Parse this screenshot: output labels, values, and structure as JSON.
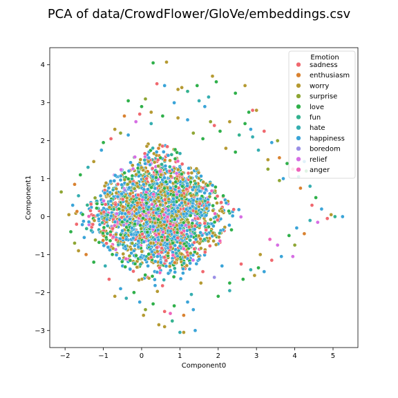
{
  "chart_data": {
    "type": "scatter",
    "title": "PCA of data/CrowdFlower/GloVe/embeddings.csv",
    "xlabel": "Component0",
    "ylabel": "Component1",
    "xlim": [
      -2.4,
      5.65
    ],
    "ylim": [
      -3.45,
      4.45
    ],
    "xticks": [
      -2,
      -1,
      0,
      1,
      2,
      3,
      4,
      5
    ],
    "yticks": [
      -3,
      -2,
      -1,
      0,
      1,
      2,
      3,
      4
    ],
    "grid": false,
    "legend": {
      "title": "Emotion",
      "placement": "top-right"
    },
    "series": [
      {
        "name": "sadness",
        "color": "#f0686f"
      },
      {
        "name": "enthusiasm",
        "color": "#d98230"
      },
      {
        "name": "worry",
        "color": "#b59a32"
      },
      {
        "name": "surprise",
        "color": "#8ea634"
      },
      {
        "name": "love",
        "color": "#2fb04a"
      },
      {
        "name": "fun",
        "color": "#33b28f"
      },
      {
        "name": "hate",
        "color": "#35aeb0"
      },
      {
        "name": "happiness",
        "color": "#3aa4d8"
      },
      {
        "name": "boredom",
        "color": "#9a8fe6"
      },
      {
        "name": "relief",
        "color": "#d66ee4"
      },
      {
        "name": "anger",
        "color": "#ee63bb"
      }
    ],
    "points": [
      {
        "x": 0.3,
        "y": 4.05,
        "s": 4
      },
      {
        "x": 0.65,
        "y": 4.07,
        "s": 2
      },
      {
        "x": 0.4,
        "y": 3.5,
        "s": 0
      },
      {
        "x": 0.6,
        "y": 3.45,
        "s": 7
      },
      {
        "x": 1.05,
        "y": 3.4,
        "s": 2
      },
      {
        "x": 1.2,
        "y": 3.3,
        "s": 5
      },
      {
        "x": 1.45,
        "y": 3.45,
        "s": 4
      },
      {
        "x": 1.85,
        "y": 3.7,
        "s": 2
      },
      {
        "x": 1.95,
        "y": 3.55,
        "s": 4
      },
      {
        "x": 2.7,
        "y": 3.45,
        "s": 2
      },
      {
        "x": 2.45,
        "y": 3.25,
        "s": 4
      },
      {
        "x": 0.1,
        "y": 3.1,
        "s": 3
      },
      {
        "x": -0.35,
        "y": 3.05,
        "s": 4
      },
      {
        "x": 0.85,
        "y": 3.0,
        "s": 7
      },
      {
        "x": 1.5,
        "y": 3.05,
        "s": 6
      },
      {
        "x": 0.0,
        "y": 2.9,
        "s": 4
      },
      {
        "x": -0.05,
        "y": 2.7,
        "s": 0
      },
      {
        "x": 0.25,
        "y": 2.75,
        "s": 2
      },
      {
        "x": 1.65,
        "y": 2.9,
        "s": 7
      },
      {
        "x": 1.8,
        "y": 2.5,
        "s": 3
      },
      {
        "x": 2.9,
        "y": 2.8,
        "s": 0
      },
      {
        "x": 3.0,
        "y": 2.8,
        "s": 2
      },
      {
        "x": 2.8,
        "y": 2.75,
        "s": 4
      },
      {
        "x": -0.45,
        "y": 2.65,
        "s": 1
      },
      {
        "x": 1.9,
        "y": 2.4,
        "s": 0
      },
      {
        "x": 2.05,
        "y": 2.25,
        "s": 4
      },
      {
        "x": 2.3,
        "y": 2.5,
        "s": 2
      },
      {
        "x": 2.85,
        "y": 2.3,
        "s": 7
      },
      {
        "x": -0.7,
        "y": 2.3,
        "s": 2
      },
      {
        "x": 2.55,
        "y": 2.15,
        "s": 5
      },
      {
        "x": 3.2,
        "y": 2.25,
        "s": 0
      },
      {
        "x": 2.9,
        "y": 2.1,
        "s": 6
      },
      {
        "x": 3.55,
        "y": 2.0,
        "s": 3
      },
      {
        "x": 3.4,
        "y": 1.95,
        "s": 7
      },
      {
        "x": 2.2,
        "y": 1.8,
        "s": 2
      },
      {
        "x": 2.45,
        "y": 1.7,
        "s": 4
      },
      {
        "x": 3.05,
        "y": 1.75,
        "s": 6
      },
      {
        "x": 3.3,
        "y": 1.5,
        "s": 2
      },
      {
        "x": 3.6,
        "y": 1.55,
        "s": 1
      },
      {
        "x": 3.8,
        "y": 1.4,
        "s": 4
      },
      {
        "x": 4.25,
        "y": 1.45,
        "s": 7
      },
      {
        "x": 4.1,
        "y": 1.05,
        "s": 6
      },
      {
        "x": 3.95,
        "y": 1.25,
        "s": 0
      },
      {
        "x": 4.3,
        "y": 1.2,
        "s": 4
      },
      {
        "x": 3.6,
        "y": 0.95,
        "s": 3
      },
      {
        "x": 3.7,
        "y": 1.0,
        "s": 7
      },
      {
        "x": 4.15,
        "y": 0.75,
        "s": 1
      },
      {
        "x": 4.4,
        "y": 0.8,
        "s": 6
      },
      {
        "x": 4.55,
        "y": 0.5,
        "s": 4
      },
      {
        "x": 4.45,
        "y": 0.3,
        "s": 0
      },
      {
        "x": 4.7,
        "y": 0.2,
        "s": 7
      },
      {
        "x": 4.95,
        "y": 0.05,
        "s": 2
      },
      {
        "x": 5.05,
        "y": 0.0,
        "s": 5
      },
      {
        "x": 5.25,
        "y": 0.0,
        "s": 7
      },
      {
        "x": 4.85,
        "y": -0.05,
        "s": 0
      },
      {
        "x": 4.6,
        "y": -0.15,
        "s": 9
      },
      {
        "x": 4.4,
        "y": -0.1,
        "s": 6
      },
      {
        "x": 4.25,
        "y": -0.45,
        "s": 1
      },
      {
        "x": 4.05,
        "y": -0.3,
        "s": 7
      },
      {
        "x": 3.85,
        "y": -0.5,
        "s": 4
      },
      {
        "x": 4.0,
        "y": -0.75,
        "s": 3
      },
      {
        "x": 3.55,
        "y": -0.75,
        "s": 9
      },
      {
        "x": 3.65,
        "y": -1.05,
        "s": 7
      },
      {
        "x": 3.4,
        "y": -1.15,
        "s": 0
      },
      {
        "x": 3.1,
        "y": -1.0,
        "s": 2
      },
      {
        "x": 3.05,
        "y": -1.35,
        "s": 4
      },
      {
        "x": 3.2,
        "y": -1.45,
        "s": 7
      },
      {
        "x": 2.95,
        "y": -1.55,
        "s": 2
      },
      {
        "x": 2.85,
        "y": -1.4,
        "s": 6
      },
      {
        "x": 2.6,
        "y": -1.25,
        "s": 0
      },
      {
        "x": 2.3,
        "y": -1.75,
        "s": 4
      },
      {
        "x": 2.1,
        "y": -1.3,
        "s": 7
      },
      {
        "x": 1.9,
        "y": -1.6,
        "s": 8
      },
      {
        "x": 2.0,
        "y": -2.1,
        "s": 4
      },
      {
        "x": 1.55,
        "y": -1.75,
        "s": 2
      },
      {
        "x": 1.3,
        "y": -2.05,
        "s": 6
      },
      {
        "x": 1.2,
        "y": -2.25,
        "s": 7
      },
      {
        "x": 1.35,
        "y": -2.45,
        "s": 7
      },
      {
        "x": 1.1,
        "y": -2.6,
        "s": 1
      },
      {
        "x": 0.85,
        "y": -2.35,
        "s": 4
      },
      {
        "x": 0.6,
        "y": -2.5,
        "s": 0
      },
      {
        "x": 0.45,
        "y": -2.85,
        "s": 2
      },
      {
        "x": 0.8,
        "y": -2.75,
        "s": 5
      },
      {
        "x": 1.0,
        "y": -3.05,
        "s": 6
      },
      {
        "x": 1.1,
        "y": -3.05,
        "s": 2
      },
      {
        "x": 0.3,
        "y": -2.3,
        "s": 4
      },
      {
        "x": 0.1,
        "y": -2.45,
        "s": 3
      },
      {
        "x": 0.05,
        "y": -2.6,
        "s": 2
      },
      {
        "x": -0.05,
        "y": -2.25,
        "s": 7
      },
      {
        "x": -0.2,
        "y": -2.0,
        "s": 4
      },
      {
        "x": -0.4,
        "y": -2.15,
        "s": 6
      },
      {
        "x": -0.7,
        "y": -2.1,
        "s": 2
      },
      {
        "x": -0.55,
        "y": -1.9,
        "s": 7
      },
      {
        "x": -0.85,
        "y": -1.65,
        "s": 0
      },
      {
        "x": -0.95,
        "y": -1.3,
        "s": 6
      },
      {
        "x": -1.25,
        "y": -1.2,
        "s": 4
      },
      {
        "x": -1.45,
        "y": -1.0,
        "s": 1
      },
      {
        "x": -1.65,
        "y": -0.9,
        "s": 2
      },
      {
        "x": -1.75,
        "y": -0.7,
        "s": 3
      },
      {
        "x": -1.5,
        "y": -0.55,
        "s": 7
      },
      {
        "x": -1.85,
        "y": -0.4,
        "s": 4
      },
      {
        "x": -1.7,
        "y": -0.2,
        "s": 0
      },
      {
        "x": -1.9,
        "y": 0.05,
        "s": 2
      },
      {
        "x": -2.1,
        "y": 0.65,
        "s": 3
      },
      {
        "x": -1.8,
        "y": 0.3,
        "s": 7
      },
      {
        "x": -1.65,
        "y": 0.55,
        "s": 6
      },
      {
        "x": -1.75,
        "y": 0.85,
        "s": 1
      },
      {
        "x": -1.6,
        "y": 1.1,
        "s": 4
      },
      {
        "x": -1.4,
        "y": 1.3,
        "s": 6
      },
      {
        "x": -1.25,
        "y": 1.45,
        "s": 2
      },
      {
        "x": -1.05,
        "y": 1.75,
        "s": 7
      },
      {
        "x": -1.0,
        "y": 1.95,
        "s": 4
      },
      {
        "x": -0.8,
        "y": 2.05,
        "s": 0
      },
      {
        "x": -0.55,
        "y": 2.2,
        "s": 3
      },
      {
        "x": -0.35,
        "y": 2.15,
        "s": 7
      },
      {
        "x": 0.25,
        "y": 2.45,
        "s": 6
      },
      {
        "x": 0.55,
        "y": 2.65,
        "s": 4
      },
      {
        "x": 0.95,
        "y": 2.6,
        "s": 2
      },
      {
        "x": 1.2,
        "y": 2.55,
        "s": 7
      },
      {
        "x": 1.35,
        "y": 2.2,
        "s": 3
      },
      {
        "x": 1.6,
        "y": 2.05,
        "s": 4
      },
      {
        "x": 0.6,
        "y": -2.9,
        "s": 2
      },
      {
        "x": 1.4,
        "y": -3.0,
        "s": 7
      },
      {
        "x": 2.3,
        "y": -1.95,
        "s": 6
      },
      {
        "x": 2.65,
        "y": -1.65,
        "s": 4
      },
      {
        "x": 3.35,
        "y": -0.6,
        "s": 10
      },
      {
        "x": 3.95,
        "y": -1.05,
        "s": 9
      },
      {
        "x": 3.3,
        "y": 1.25,
        "s": 3
      },
      {
        "x": 2.7,
        "y": 2.45,
        "s": 4
      },
      {
        "x": 1.75,
        "y": 3.15,
        "s": 6
      },
      {
        "x": 0.95,
        "y": 3.35,
        "s": 2
      },
      {
        "x": -0.15,
        "y": 2.5,
        "s": 9
      },
      {
        "x": 0.75,
        "y": -2.55,
        "s": 10
      },
      {
        "x": 1.6,
        "y": -1.45,
        "s": 0
      }
    ],
    "cloud_size": 2600,
    "cloud_seed": 7
  }
}
